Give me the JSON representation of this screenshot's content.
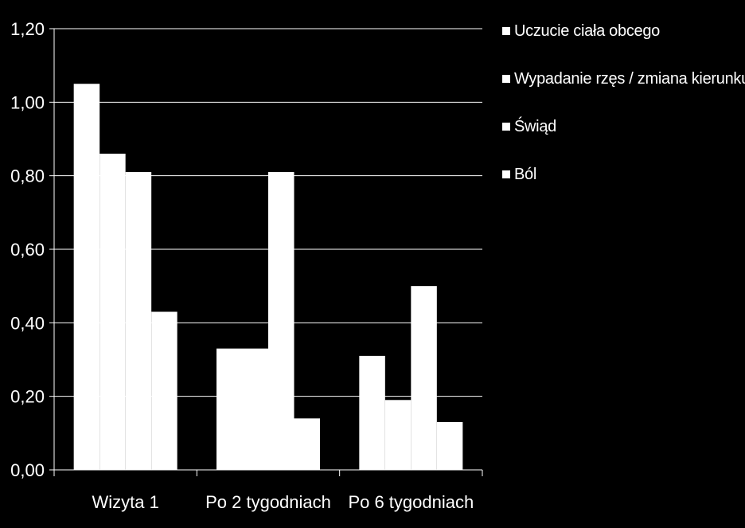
{
  "chart_data": {
    "type": "bar",
    "categories": [
      "Wizyta 1",
      "Po 2 tygodniach",
      "Po 6 tygodniach"
    ],
    "series": [
      {
        "name": "Uczucie ciała obcego",
        "values": [
          1.05,
          0.33,
          0.31
        ]
      },
      {
        "name": "Wypadanie rzęs / zmiana kierunku",
        "values": [
          0.86,
          0.33,
          0.19
        ]
      },
      {
        "name": "Świąd",
        "values": [
          0.81,
          0.81,
          0.5
        ]
      },
      {
        "name": "Ból",
        "values": [
          0.43,
          0.14,
          0.13
        ]
      }
    ],
    "yticks": [
      "0,00",
      "0,20",
      "0,40",
      "0,60",
      "0,80",
      "1,00",
      "1,20"
    ],
    "ylim": [
      0,
      1.2
    ],
    "ystep": 0.2,
    "grid": true,
    "legend_position": "right",
    "background": "#000000",
    "bar_color": "#ffffff",
    "axis_color": "#ffffff"
  }
}
